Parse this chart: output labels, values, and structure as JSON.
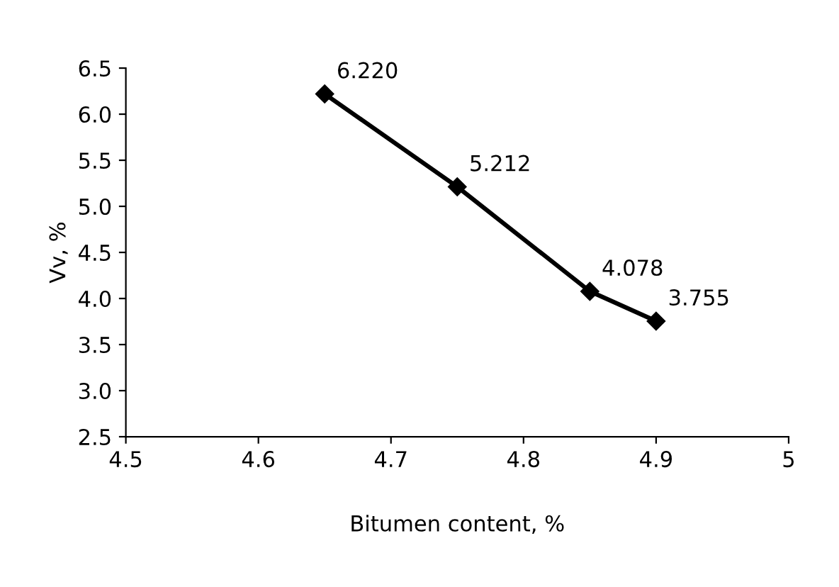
{
  "chart_data": {
    "type": "line",
    "xlabel": "Bitumen content, %",
    "ylabel": "Vv, %",
    "x": [
      4.65,
      4.75,
      4.85,
      4.9
    ],
    "series": [
      {
        "color": "#000000",
        "values": [
          6.22,
          5.212,
          4.078,
          3.755
        ],
        "value_labels": [
          "6.220",
          "5.212",
          "4.078",
          "3.755"
        ]
      }
    ],
    "xlim": [
      4.5,
      5
    ],
    "xticks": [
      4.5,
      4.6,
      4.7,
      4.8,
      4.9,
      5
    ],
    "ylim": [
      2.5,
      6.5
    ],
    "yticks": [
      2.5,
      {
        "value": 3,
        "label": "3.0"
      },
      3.5,
      {
        "value": 4,
        "label": "4.0"
      },
      4.5,
      {
        "value": 5,
        "label": "5.0"
      },
      5.5,
      {
        "value": 6,
        "label": "6.0"
      },
      6.5
    ],
    "marker": "diamond",
    "line_style": "solid",
    "grid": false,
    "legend": false
  }
}
